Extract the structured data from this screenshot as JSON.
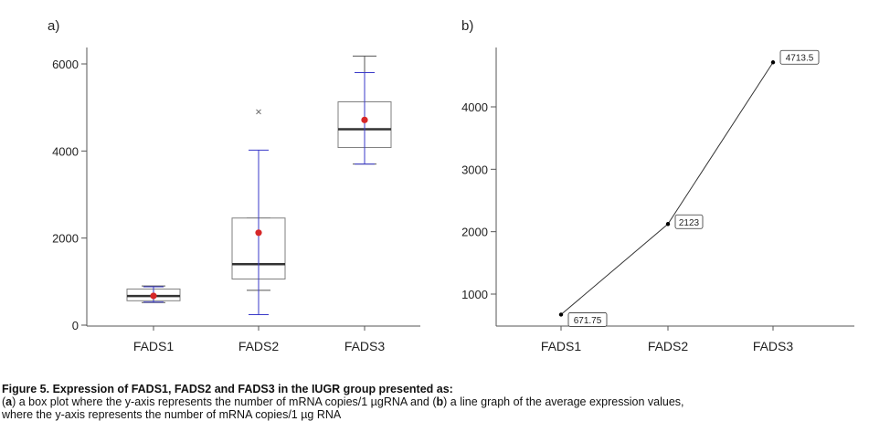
{
  "chart_data": [
    {
      "type": "box",
      "panel_label": "a)",
      "categories": [
        "FADS1",
        "FADS2",
        "FADS3"
      ],
      "ylim": [
        0,
        6500
      ],
      "yticks": [
        "0",
        "2000",
        "4000",
        "6000"
      ],
      "ytick_values": [
        0,
        2000,
        4000,
        6000
      ],
      "boxes": [
        {
          "category": "FADS1",
          "min": 520,
          "q1": 560,
          "median": 670,
          "q3": 830,
          "max": 900,
          "mean": 671.75,
          "outliers": []
        },
        {
          "category": "FADS2",
          "min": 800,
          "q1": 1060,
          "median": 1400,
          "q3": 2460,
          "max": 2460,
          "mean": 2123,
          "outliers": [
            4900
          ]
        },
        {
          "category": "FADS3",
          "min": 3700,
          "q1": 4080,
          "median": 4500,
          "q3": 5130,
          "max": 6180,
          "mean": 4713.5,
          "outliers": []
        }
      ],
      "intervals": [
        {
          "category": "FADS1",
          "low": 530,
          "high": 880
        },
        {
          "category": "FADS2",
          "low": 240,
          "high": 4020
        },
        {
          "category": "FADS3",
          "low": 3700,
          "high": 5800
        }
      ],
      "colors": {
        "box_edge": "#7f7f7f",
        "median": "#333333",
        "whisker": "#555555",
        "interval": "#3a3ac8",
        "mean": "#d62728",
        "outlier": "#666666"
      }
    },
    {
      "type": "line",
      "panel_label": "b)",
      "categories": [
        "FADS1",
        "FADS2",
        "FADS3"
      ],
      "values": [
        671.75,
        2123,
        4713.5
      ],
      "data_labels": [
        "671.75",
        "2123",
        "4713.5"
      ],
      "ylim": [
        500,
        4900
      ],
      "yticks": [
        "1000",
        "2000",
        "3000",
        "4000"
      ],
      "ytick_values": [
        1000,
        2000,
        3000,
        4000
      ],
      "colors": {
        "line": "#333333",
        "marker": "#000000"
      }
    }
  ],
  "caption": {
    "title": "Figure 5. Expression of FADS1, FADS2 and FADS3 in the IUGR group presented as:",
    "line2": {
      "p1": "(",
      "a": "a",
      "p2": ") a box plot where the y-axis represents the number of mRNA copies/1 µgRNA and (",
      "b": "b",
      "p3": ") a line graph of the average expression values,"
    },
    "line3": "where the y-axis represents the number of mRNA copies/1 µg RNA"
  }
}
